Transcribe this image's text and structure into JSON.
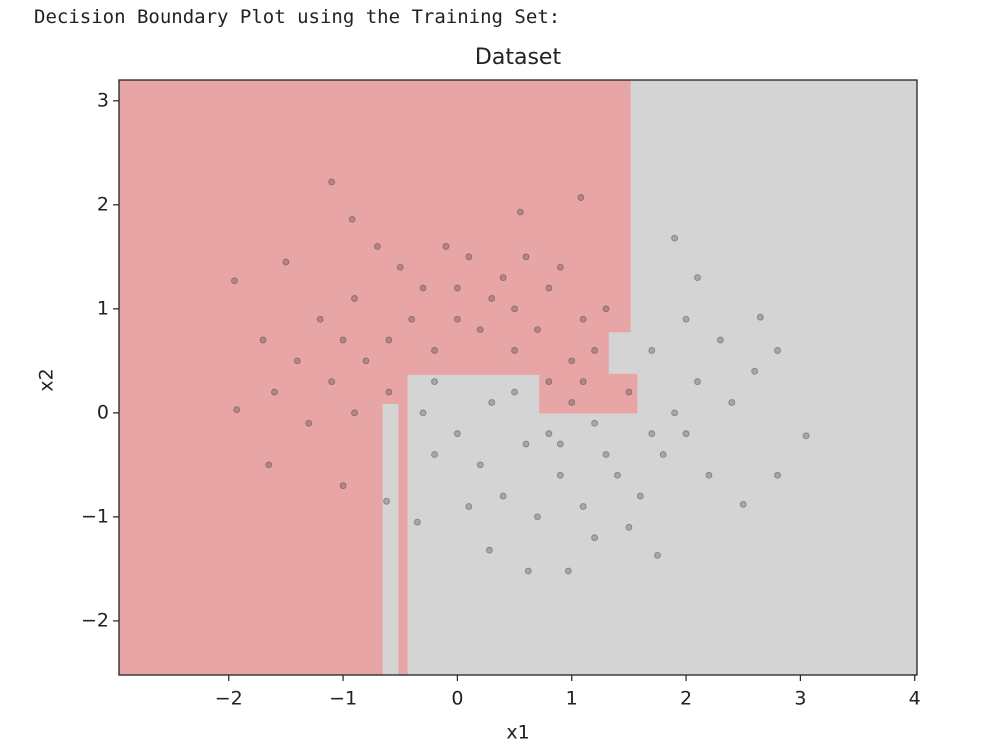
{
  "header": "Decision Boundary Plot using the Training Set:",
  "chart_data": {
    "type": "scatter",
    "title": "Dataset",
    "x_label": "x1",
    "y_label": "x2",
    "xlim": [
      -2.96,
      4.02
    ],
    "ylim": [
      -2.52,
      3.2
    ],
    "xticks": [
      {
        "value": -2,
        "label": "−2"
      },
      {
        "value": -1,
        "label": "−1"
      },
      0,
      1,
      2,
      3,
      4
    ],
    "yticks": [
      {
        "value": -2,
        "label": "−2"
      },
      {
        "value": -1,
        "label": "−1"
      },
      0,
      1,
      2,
      3
    ],
    "background_color": "#d4d4d4",
    "regions": [
      {
        "color": "#e8a5a5",
        "polygon": [
          [
            -2.96,
            3.2
          ],
          [
            1.51,
            3.2
          ],
          [
            1.51,
            0.78
          ],
          [
            1.32,
            0.78
          ],
          [
            1.32,
            0.37
          ],
          [
            1.57,
            0.37
          ],
          [
            1.57,
            0
          ],
          [
            0.72,
            0
          ],
          [
            0.72,
            0.37
          ],
          [
            -0.44,
            0.37
          ],
          [
            -0.44,
            -2.52
          ],
          [
            -2.96,
            -2.52
          ]
        ]
      },
      {
        "color": "#d4d4d4",
        "polygon": [
          [
            -0.65,
            0.08
          ],
          [
            -0.52,
            0.08
          ],
          [
            -0.52,
            -2.52
          ],
          [
            -0.65,
            -2.52
          ]
        ]
      }
    ],
    "series": [
      {
        "color": "#3a3a3a",
        "x": [
          -1.1,
          -0.92,
          -1.95,
          1.08,
          1.9,
          0.55,
          -1.93,
          -1.65,
          -0.62,
          3.05,
          2.8,
          0.62,
          0.97,
          1.75,
          0.28,
          -0.35,
          -1.0,
          2.1,
          2.65,
          2.5,
          -1.5,
          -1.2,
          -0.9,
          -0.6,
          -0.3,
          0,
          0.3,
          0.5,
          0.8,
          1.1,
          -1.4,
          -1.1,
          -0.8,
          -0.5,
          -0.2,
          0.1,
          0.4,
          0.7,
          1.0,
          1.3,
          -1.6,
          -1.3,
          -0.9,
          -0.7,
          -0.1,
          0.6,
          0.9,
          -1.0,
          -0.4,
          0.2,
          0.5,
          1.2,
          -1.7,
          -0.2,
          0.0,
          -0.6,
          0.8,
          0,
          0.3,
          0.6,
          0.9,
          1.2,
          1.5,
          1.8,
          2.1,
          2.4,
          0.4,
          0.7,
          1.1,
          1.4,
          1.7,
          2.0,
          2.3,
          0.2,
          0.5,
          0.8,
          1.0,
          1.3,
          1.6,
          1.9,
          2.2,
          2.6,
          2.8,
          -0.2,
          -0.3,
          0.1,
          1.2,
          1.5,
          0.9,
          1.1,
          2.0,
          1.7
        ],
        "y": [
          2.22,
          1.86,
          1.27,
          2.07,
          1.68,
          1.93,
          0.03,
          -0.5,
          -0.85,
          -0.22,
          -0.6,
          -1.52,
          -1.52,
          -1.37,
          -1.32,
          -1.05,
          -0.7,
          1.3,
          0.92,
          -0.88,
          1.45,
          0.9,
          1.1,
          0.7,
          1.2,
          0.9,
          1.1,
          0.6,
          1.2,
          0.9,
          0.5,
          0.3,
          0.5,
          1.4,
          0.6,
          1.5,
          1.3,
          0.8,
          0.5,
          1.0,
          0.2,
          -0.1,
          0.0,
          1.6,
          1.6,
          1.5,
          1.4,
          0.7,
          0.9,
          0.8,
          1.0,
          0.6,
          0.7,
          0.3,
          1.2,
          0.2,
          0.3,
          -0.2,
          0.1,
          -0.3,
          -0.6,
          -0.1,
          0.2,
          -0.4,
          0.3,
          0.1,
          -0.8,
          -1.0,
          -0.9,
          -0.6,
          0.6,
          -0.2,
          0.7,
          -0.5,
          0.2,
          -0.2,
          0.1,
          -0.4,
          -0.8,
          0.0,
          -0.6,
          0.4,
          0.6,
          -0.4,
          0.0,
          -0.9,
          -1.2,
          -1.1,
          -0.3,
          0.3,
          0.9,
          -0.2
        ]
      }
    ]
  }
}
